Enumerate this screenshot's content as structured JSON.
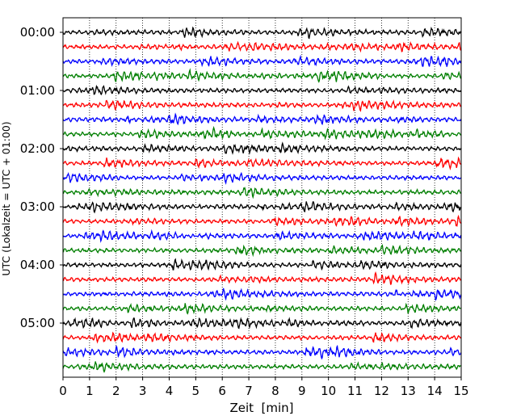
{
  "chart_data": {
    "type": "line",
    "title": "",
    "xlabel": "Zeit  [min]",
    "ylabel": "UTC (Lokalzeit = UTC + 01:00)",
    "xlim": [
      0,
      15
    ],
    "x_ticks": [
      "0",
      "1",
      "2",
      "3",
      "4",
      "5",
      "6",
      "7",
      "8",
      "9",
      "10",
      "11",
      "12",
      "13",
      "14",
      "15"
    ],
    "y_ticks": [
      "00:00",
      "01:00",
      "02:00",
      "03:00",
      "04:00",
      "05:00"
    ],
    "grid": "vertical dotted",
    "trace_interval_minutes": 15,
    "trace_count": 24,
    "trace_colors": [
      "#000000",
      "#ff0000",
      "#0000ff",
      "#007f00"
    ]
  }
}
